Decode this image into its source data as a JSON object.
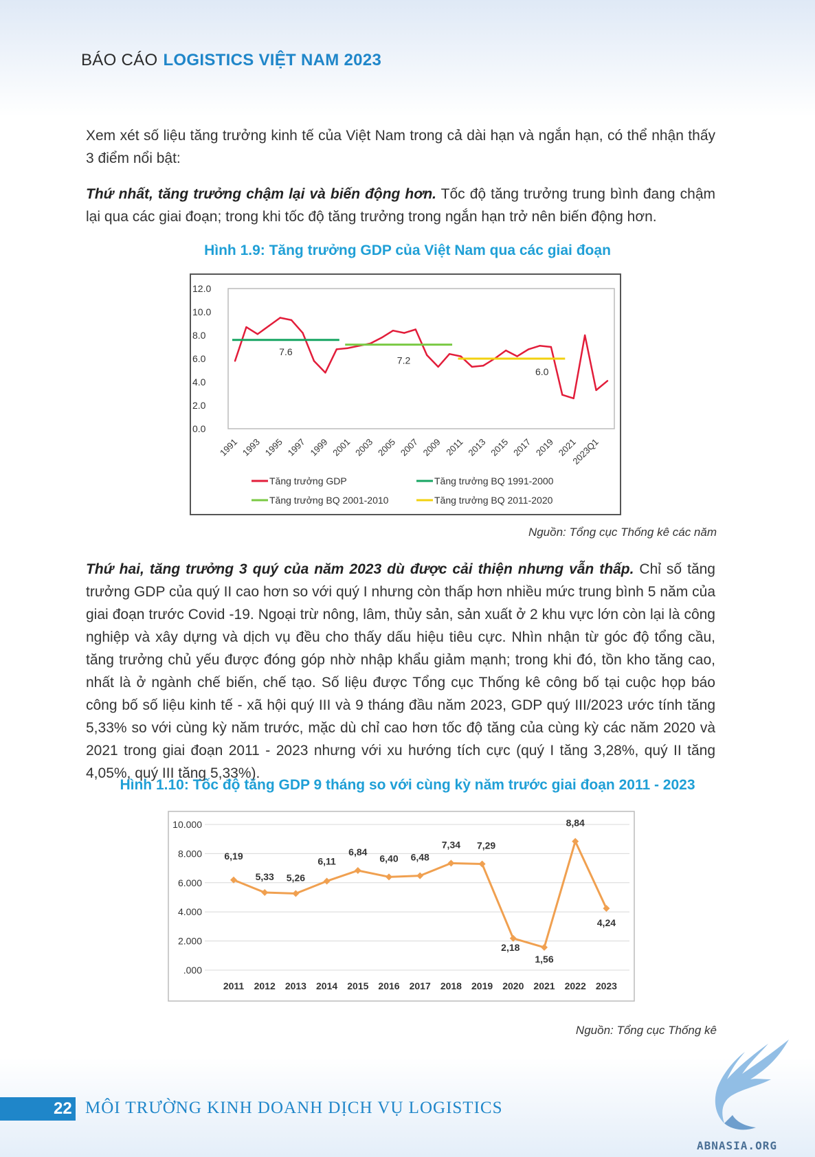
{
  "header": {
    "light": "BÁO CÁO",
    "bold": "LOGISTICS VIỆT NAM 2023"
  },
  "intro": "Xem xét số liệu tăng trưởng kinh tế của Việt Nam trong cả dài hạn và ngắn hạn, có thể nhận thấy 3 điểm nổi bật:",
  "point1": {
    "lead": "Thứ nhất, tăng trưởng chậm lại và biến động hơn.",
    "text": " Tốc độ tăng trưởng trung bình đang chậm lại qua các giai đoạn; trong khi tốc độ tăng trưởng trong ngắn hạn trở nên biến động hơn."
  },
  "fig1": {
    "title": "Hình 1.9: Tăng trưởng GDP của Việt Nam qua các giai đoạn",
    "source": "Nguồn: Tổng cục Thống kê các năm"
  },
  "point2": {
    "lead": "Thứ hai, tăng trưởng 3 quý của năm 2023 dù được cải thiện nhưng vẫn thấp.",
    "text": " Chỉ số tăng trưởng GDP của quý II cao hơn so với quý I nhưng còn thấp hơn nhiều mức trung bình 5 năm của giai đoạn trước Covid -19. Ngoại trừ nông, lâm, thủy sản, sản xuất ở 2 khu vực lớn còn lại là công nghiệp và xây dựng và dịch vụ đều cho thấy dấu hiệu tiêu cực. Nhìn nhận từ góc độ tổng cầu, tăng trưởng chủ yếu được đóng góp nhờ nhập khẩu giảm mạnh; trong khi đó, tồn kho tăng cao, nhất là ở ngành chế biến, chế tạo. Số liệu được Tổng cục Thống kê công bố tại cuộc họp báo công bố số liệu kinh tế - xã hội quý III và 9 tháng đầu năm 2023, GDP quý III/2023 ước tính tăng 5,33% so với cùng kỳ năm trước, mặc dù chỉ cao hơn tốc độ tăng của cùng kỳ các năm 2020 và 2021 trong giai đoạn 2011 - 2023 nhưng với xu hướng tích cực (quý I tăng 3,28%, quý II tăng 4,05%, quý III tăng 5,33%)."
  },
  "fig2": {
    "title": "Hình 1.10: Tốc độ tăng GDP 9 tháng so với cùng kỳ năm trước giai đoạn 2011 - 2023",
    "source": "Nguồn: Tổng cục Thống kê"
  },
  "footer": {
    "page": "22",
    "title": "MÔI TRƯỜNG KINH DOANH DỊCH VỤ LOGISTICS",
    "watermark": "ABNASIA.ORG"
  },
  "colors": {
    "accent": "#1f86c9",
    "fig_title": "#1f9fd6",
    "gdp_line": "#e21d3a",
    "avg1": "#16a562",
    "avg2": "#7ac943",
    "avg3": "#f2d10f",
    "line2": "#f0a050"
  },
  "chart_data": [
    {
      "type": "line",
      "ylim": [
        0,
        12
      ],
      "y_ticks": [
        "12.0",
        "10.0",
        "8.0",
        "6.0",
        "4.0",
        "2.0",
        "0.0"
      ],
      "x_tick_labels": [
        "1991",
        "1993",
        "1995",
        "1997",
        "1999",
        "2001",
        "2003",
        "2005",
        "2007",
        "2009",
        "2011",
        "2013",
        "2015",
        "2017",
        "2019",
        "2021",
        "2023Q1"
      ],
      "x": [
        "1991",
        "1992",
        "1993",
        "1994",
        "1995",
        "1996",
        "1997",
        "1998",
        "1999",
        "2000",
        "2001",
        "2002",
        "2003",
        "2004",
        "2005",
        "2006",
        "2007",
        "2008",
        "2009",
        "2010",
        "2011",
        "2012",
        "2013",
        "2014",
        "2015",
        "2016",
        "2017",
        "2018",
        "2019",
        "2020",
        "2021",
        "2022",
        "2023Q1",
        "2023Q2"
      ],
      "series": [
        {
          "name": "Tăng trưởng GDP",
          "values": [
            5.8,
            8.7,
            8.1,
            8.8,
            9.5,
            9.3,
            8.2,
            5.8,
            4.8,
            6.8,
            6.9,
            7.1,
            7.3,
            7.8,
            8.4,
            8.2,
            8.5,
            6.3,
            5.3,
            6.4,
            6.2,
            5.3,
            5.4,
            6.0,
            6.7,
            6.2,
            6.8,
            7.1,
            7.0,
            2.9,
            2.6,
            8.0,
            3.3,
            4.1
          ]
        },
        {
          "name": "Tăng trưởng BQ 1991-2000",
          "value": 7.6,
          "label": "7.6",
          "span": [
            "1991",
            "2000"
          ]
        },
        {
          "name": "Tăng trưởng BQ 2001-2010",
          "value": 7.2,
          "label": "7.2",
          "span": [
            "2001",
            "2010"
          ]
        },
        {
          "name": "Tăng trưởng BQ 2011-2020",
          "value": 6.0,
          "label": "6.0",
          "span": [
            "2011",
            "2020"
          ]
        }
      ]
    },
    {
      "type": "line",
      "ylim": [
        0,
        10
      ],
      "y_ticks": [
        "10.000",
        "8.000",
        "6.000",
        "4.000",
        "2.000",
        ".000"
      ],
      "categories": [
        "2011",
        "2012",
        "2013",
        "2014",
        "2015",
        "2016",
        "2017",
        "2018",
        "2019",
        "2020",
        "2021",
        "2022",
        "2023"
      ],
      "values": [
        6.19,
        5.33,
        5.26,
        6.11,
        6.84,
        6.4,
        6.48,
        7.34,
        7.29,
        2.18,
        1.56,
        8.84,
        4.24
      ],
      "labels": [
        "6,19",
        "5,33",
        "5,26",
        "6,11",
        "6,84",
        "6,40",
        "6,48",
        "7,34",
        "7,29",
        "2,18",
        "1,56",
        "8,84",
        "4,24"
      ]
    }
  ]
}
